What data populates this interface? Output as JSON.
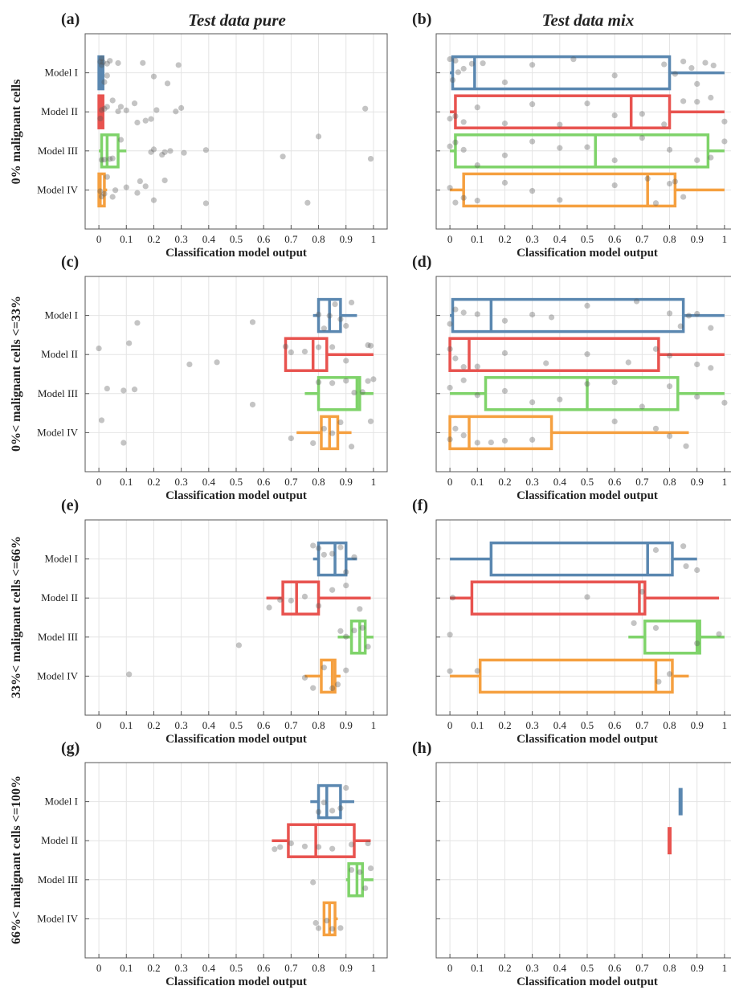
{
  "figure": {
    "column_titles": [
      "Test data pure",
      "Test data mix"
    ],
    "row_labels": [
      "0% malignant cells",
      "0%< malignant cells <=33%",
      "33%< malignant cells <=66%",
      "66%< malignant cells <=100%"
    ],
    "xlabel": "Classification model output",
    "xticks": [
      0,
      0.1,
      0.2,
      0.3,
      0.4,
      0.5,
      0.6,
      0.7,
      0.8,
      0.9,
      1
    ],
    "xtick_labels": [
      "0",
      "0.1",
      "0.2",
      "0.3",
      "0.4",
      "0.5",
      "0.6",
      "0.7",
      "0.8",
      "0.9",
      "1"
    ],
    "categories": [
      "Model I",
      "Model II",
      "Model III",
      "Model IV"
    ],
    "colors": {
      "Model I": "#5a87b0",
      "Model II": "#e8534f",
      "Model III": "#7fd36a",
      "Model IV": "#f5a040",
      "points": "#555555",
      "grid": "#e4e4e4",
      "axis": "#555555"
    }
  },
  "chart_data": [
    {
      "panel": "(a)",
      "type": "box",
      "xlabel": "Classification model output",
      "xlim": [
        -0.05,
        1.05
      ],
      "grid": true,
      "series": [
        {
          "name": "Model I",
          "whisker": [
            0,
            0.02
          ],
          "box": [
            0,
            0.015
          ],
          "median": 0.005,
          "points": [
            0.01,
            0.02,
            0.04,
            0.03,
            0.16,
            0.2,
            0.25,
            0.29,
            0.005,
            0.01,
            0.015,
            0.03,
            0.07
          ]
        },
        {
          "name": "Model II",
          "whisker": [
            0,
            0.02
          ],
          "box": [
            0,
            0.015
          ],
          "median": 0.005,
          "points": [
            0.03,
            0.05,
            0.07,
            0.08,
            0.1,
            0.13,
            0.14,
            0.17,
            0.19,
            0.21,
            0.28,
            0.3,
            0.97,
            0.005,
            0.01,
            0.02
          ]
        },
        {
          "name": "Model III",
          "whisker": [
            0,
            0.1
          ],
          "box": [
            0.01,
            0.07
          ],
          "median": 0.03,
          "points": [
            0.01,
            0.02,
            0.04,
            0.05,
            0.08,
            0.19,
            0.2,
            0.23,
            0.24,
            0.26,
            0.31,
            0.39,
            0.67,
            0.8,
            0.99
          ]
        },
        {
          "name": "Model IV",
          "whisker": [
            0,
            0.03
          ],
          "box": [
            0,
            0.02
          ],
          "median": 0.005,
          "points": [
            0.01,
            0.02,
            0.05,
            0.06,
            0.1,
            0.14,
            0.15,
            0.17,
            0.2,
            0.24,
            0.39,
            0.76,
            0.005,
            0.03
          ]
        }
      ]
    },
    {
      "panel": "(b)",
      "type": "box",
      "xlabel": "Classification model output",
      "xlim": [
        -0.05,
        1.05
      ],
      "grid": true,
      "series": [
        {
          "name": "Model I",
          "whisker": [
            0,
            1
          ],
          "box": [
            0.01,
            0.8
          ],
          "median": 0.09,
          "points": [
            0.0,
            0.01,
            0.02,
            0.03,
            0.05,
            0.08,
            0.12,
            0.2,
            0.3,
            0.45,
            0.6,
            0.78,
            0.82,
            0.85,
            0.88,
            0.9,
            0.93,
            0.96
          ]
        },
        {
          "name": "Model II",
          "whisker": [
            0,
            1
          ],
          "box": [
            0.02,
            0.8
          ],
          "median": 0.66,
          "points": [
            0.0,
            0.02,
            0.05,
            0.1,
            0.2,
            0.3,
            0.4,
            0.5,
            0.6,
            0.7,
            0.78,
            0.85,
            0.9,
            0.95,
            1.0
          ]
        },
        {
          "name": "Model III",
          "whisker": [
            0,
            1
          ],
          "box": [
            0.02,
            0.94
          ],
          "median": 0.53,
          "points": [
            0.0,
            0.02,
            0.05,
            0.1,
            0.2,
            0.3,
            0.4,
            0.5,
            0.6,
            0.7,
            0.8,
            0.9,
            0.95,
            1.0
          ]
        },
        {
          "name": "Model IV",
          "whisker": [
            0,
            1
          ],
          "box": [
            0.05,
            0.82
          ],
          "median": 0.72,
          "points": [
            0.0,
            0.02,
            0.05,
            0.1,
            0.2,
            0.3,
            0.4,
            0.6,
            0.72,
            0.75,
            0.8,
            0.82,
            0.85
          ]
        }
      ]
    },
    {
      "panel": "(c)",
      "type": "box",
      "xlabel": "Classification model output",
      "xlim": [
        -0.05,
        1.05
      ],
      "grid": true,
      "series": [
        {
          "name": "Model I",
          "whisker": [
            0.78,
            0.94
          ],
          "box": [
            0.8,
            0.88
          ],
          "median": 0.84,
          "points": [
            0.14,
            0.56,
            0.8,
            0.82,
            0.84,
            0.86,
            0.88,
            0.9,
            0.92
          ]
        },
        {
          "name": "Model II",
          "whisker": [
            0.68,
            1.0
          ],
          "box": [
            0.68,
            0.83
          ],
          "median": 0.78,
          "points": [
            0.0,
            0.11,
            0.33,
            0.43,
            0.68,
            0.7,
            0.75,
            0.8,
            0.85,
            0.9,
            0.98,
            0.99
          ]
        },
        {
          "name": "Model III",
          "whisker": [
            0.75,
            1.0
          ],
          "box": [
            0.8,
            0.95
          ],
          "median": 0.94,
          "points": [
            0.03,
            0.09,
            0.13,
            0.56,
            0.8,
            0.85,
            0.9,
            0.93,
            0.96,
            0.98,
            1.0
          ]
        },
        {
          "name": "Model IV",
          "whisker": [
            0.72,
            0.92
          ],
          "box": [
            0.81,
            0.87
          ],
          "median": 0.84,
          "points": [
            0.01,
            0.09,
            0.7,
            0.78,
            0.82,
            0.85,
            0.88,
            0.92,
            0.99
          ]
        }
      ]
    },
    {
      "panel": "(d)",
      "type": "box",
      "xlabel": "Classification model output",
      "xlim": [
        -0.05,
        1.05
      ],
      "grid": true,
      "series": [
        {
          "name": "Model I",
          "whisker": [
            0,
            1
          ],
          "box": [
            0.01,
            0.85
          ],
          "median": 0.15,
          "points": [
            0.0,
            0.02,
            0.05,
            0.1,
            0.2,
            0.3,
            0.37,
            0.5,
            0.68,
            0.8,
            0.84,
            0.87,
            0.9,
            0.95
          ]
        },
        {
          "name": "Model II",
          "whisker": [
            0,
            1
          ],
          "box": [
            0.0,
            0.76
          ],
          "median": 0.07,
          "points": [
            0.0,
            0.02,
            0.05,
            0.1,
            0.2,
            0.35,
            0.5,
            0.65,
            0.75,
            0.8,
            0.9,
            0.95
          ]
        },
        {
          "name": "Model III",
          "whisker": [
            0,
            1
          ],
          "box": [
            0.13,
            0.83
          ],
          "median": 0.5,
          "points": [
            0.0,
            0.05,
            0.1,
            0.2,
            0.3,
            0.4,
            0.5,
            0.6,
            0.7,
            0.8,
            0.9,
            1.0
          ]
        },
        {
          "name": "Model IV",
          "whisker": [
            0,
            0.87
          ],
          "box": [
            0.0,
            0.37
          ],
          "median": 0.07,
          "points": [
            0.0,
            0.02,
            0.05,
            0.1,
            0.15,
            0.2,
            0.3,
            0.6,
            0.75,
            0.8,
            0.86
          ]
        }
      ]
    },
    {
      "panel": "(e)",
      "type": "box",
      "xlabel": "Classification model output",
      "xlim": [
        -0.05,
        1.05
      ],
      "grid": true,
      "series": [
        {
          "name": "Model I",
          "whisker": [
            0.78,
            0.94
          ],
          "box": [
            0.8,
            0.9
          ],
          "median": 0.86,
          "points": [
            0.78,
            0.8,
            0.82,
            0.85,
            0.88,
            0.9,
            0.93
          ]
        },
        {
          "name": "Model II",
          "whisker": [
            0.61,
            0.99
          ],
          "box": [
            0.67,
            0.8
          ],
          "median": 0.72,
          "points": [
            0.62,
            0.66,
            0.7,
            0.75,
            0.8,
            0.85,
            0.9,
            0.95
          ]
        },
        {
          "name": "Model III",
          "whisker": [
            0.87,
            1.0
          ],
          "box": [
            0.92,
            0.97
          ],
          "median": 0.95,
          "points": [
            0.51,
            0.88,
            0.9,
            0.93,
            0.96,
            0.98
          ]
        },
        {
          "name": "Model IV",
          "whisker": [
            0.75,
            0.88
          ],
          "box": [
            0.81,
            0.86
          ],
          "median": 0.85,
          "points": [
            0.11,
            0.75,
            0.78,
            0.82,
            0.85,
            0.87,
            0.9
          ]
        }
      ]
    },
    {
      "panel": "(f)",
      "type": "box",
      "xlabel": "Classification model output",
      "xlim": [
        -0.05,
        1.05
      ],
      "grid": true,
      "series": [
        {
          "name": "Model I",
          "whisker": [
            0,
            0.9
          ],
          "box": [
            0.15,
            0.81
          ],
          "median": 0.72,
          "points": [
            0.75,
            0.85,
            0.86,
            0.9
          ]
        },
        {
          "name": "Model II",
          "whisker": [
            0.0,
            0.98
          ],
          "box": [
            0.08,
            0.71
          ],
          "median": 0.69,
          "points": [
            0.01,
            0.5,
            0.7
          ]
        },
        {
          "name": "Model III",
          "whisker": [
            0.65,
            1.0
          ],
          "box": [
            0.71,
            0.91
          ],
          "median": 0.9,
          "points": [
            0.0,
            0.67,
            0.75,
            0.9,
            0.98
          ]
        },
        {
          "name": "Model IV",
          "whisker": [
            0.0,
            0.87
          ],
          "box": [
            0.11,
            0.81
          ],
          "median": 0.75,
          "points": [
            0.0,
            0.1,
            0.76,
            0.8
          ]
        }
      ]
    },
    {
      "panel": "(g)",
      "type": "box",
      "xlabel": "Classification model output",
      "xlim": [
        -0.05,
        1.05
      ],
      "grid": true,
      "series": [
        {
          "name": "Model I",
          "whisker": [
            0.77,
            0.93
          ],
          "box": [
            0.8,
            0.88
          ],
          "median": 0.83,
          "points": [
            0.8,
            0.82,
            0.85,
            0.88,
            0.9
          ]
        },
        {
          "name": "Model II",
          "whisker": [
            0.63,
            0.99
          ],
          "box": [
            0.69,
            0.93
          ],
          "median": 0.79,
          "points": [
            0.64,
            0.66,
            0.7,
            0.75,
            0.8,
            0.85,
            0.92,
            0.98
          ]
        },
        {
          "name": "Model III",
          "whisker": [
            0.9,
            1.0
          ],
          "box": [
            0.91,
            0.96
          ],
          "median": 0.94,
          "points": [
            0.78,
            0.92,
            0.95,
            0.97,
            0.99
          ]
        },
        {
          "name": "Model IV",
          "whisker": [
            0.82,
            0.87
          ],
          "box": [
            0.82,
            0.86
          ],
          "median": 0.84,
          "points": [
            0.79,
            0.8,
            0.83,
            0.85,
            0.88
          ]
        }
      ]
    },
    {
      "panel": "(h)",
      "type": "box",
      "xlabel": "Classification model output",
      "xlim": [
        -0.05,
        1.05
      ],
      "grid": true,
      "series": [
        {
          "name": "Model I",
          "whisker": [
            0.84,
            0.84
          ],
          "box": [
            0.84,
            0.84
          ],
          "median": 0.84,
          "points": []
        },
        {
          "name": "Model II",
          "whisker": [
            0.8,
            0.8
          ],
          "box": [
            0.8,
            0.8
          ],
          "median": 0.8,
          "points": []
        },
        {
          "name": "Model III",
          "whisker": null,
          "box": null,
          "median": null,
          "points": []
        },
        {
          "name": "Model IV",
          "whisker": null,
          "box": null,
          "median": null,
          "points": []
        }
      ]
    }
  ]
}
